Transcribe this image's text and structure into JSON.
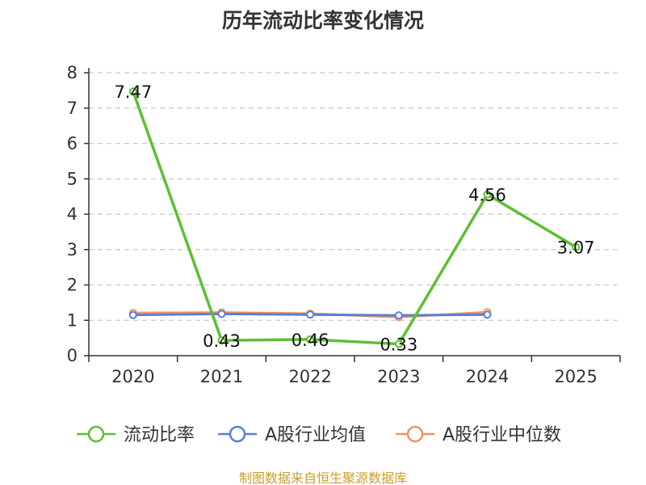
{
  "chart_data": {
    "type": "line",
    "title": "历年流动比率变化情况",
    "categories": [
      "2020",
      "2021",
      "2022",
      "2023",
      "2024",
      "2025"
    ],
    "ylim": [
      0,
      8
    ],
    "yticks": [
      0,
      1,
      2,
      3,
      4,
      5,
      6,
      7,
      8
    ],
    "grid": true,
    "legend_position": "bottom",
    "series": [
      {
        "name": "流动比率",
        "color": "#5dbf32",
        "values": [
          7.47,
          0.43,
          0.46,
          0.33,
          4.56,
          3.07
        ],
        "labels": [
          "7.47",
          "0.43",
          "0.46",
          "0.33",
          "4.56",
          "3.07"
        ]
      },
      {
        "name": "A股行业均值",
        "color": "#5b7fd6",
        "values": [
          1.15,
          1.18,
          1.16,
          1.14,
          1.16,
          null
        ]
      },
      {
        "name": "A股行业中位数",
        "color": "#f4925a",
        "values": [
          1.21,
          1.22,
          1.19,
          1.09,
          1.23,
          null
        ]
      }
    ],
    "source": "制图数据来自恒生聚源数据库"
  }
}
